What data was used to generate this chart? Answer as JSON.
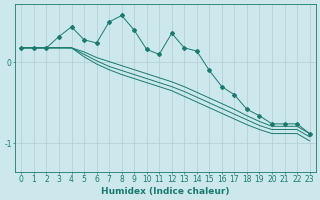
{
  "xlabel": "Humidex (Indice chaleur)",
  "bg_color": "#cce8ec",
  "grid_color": "#b0ced4",
  "line_color": "#1a7a6e",
  "x": [
    0,
    1,
    2,
    3,
    4,
    5,
    6,
    7,
    8,
    9,
    10,
    11,
    12,
    13,
    14,
    15,
    16,
    17,
    18,
    19,
    20,
    21,
    22,
    23
  ],
  "line1": [
    0.18,
    0.18,
    0.18,
    0.32,
    0.44,
    0.28,
    0.24,
    0.5,
    0.58,
    0.4,
    0.16,
    0.1,
    0.36,
    0.18,
    0.14,
    -0.1,
    -0.3,
    -0.4,
    -0.58,
    -0.66,
    -0.76,
    -0.76,
    -0.76,
    -0.88
  ],
  "line2": [
    0.18,
    0.18,
    0.18,
    0.18,
    0.18,
    0.13,
    0.06,
    0.01,
    -0.04,
    -0.09,
    -0.14,
    -0.19,
    -0.24,
    -0.3,
    -0.37,
    -0.44,
    -0.51,
    -0.58,
    -0.66,
    -0.73,
    -0.79,
    -0.79,
    -0.79,
    -0.88
  ],
  "line3": [
    0.18,
    0.18,
    0.18,
    0.18,
    0.18,
    0.1,
    0.02,
    -0.05,
    -0.1,
    -0.15,
    -0.2,
    -0.25,
    -0.3,
    -0.36,
    -0.43,
    -0.5,
    -0.57,
    -0.64,
    -0.71,
    -0.78,
    -0.83,
    -0.83,
    -0.83,
    -0.92
  ],
  "line4": [
    0.18,
    0.18,
    0.18,
    0.18,
    0.18,
    0.07,
    -0.02,
    -0.09,
    -0.15,
    -0.2,
    -0.25,
    -0.3,
    -0.35,
    -0.42,
    -0.49,
    -0.56,
    -0.63,
    -0.7,
    -0.77,
    -0.83,
    -0.88,
    -0.88,
    -0.88,
    -0.97
  ],
  "ylim": [
    -1.35,
    0.72
  ],
  "yticks": [
    0.0,
    -1.0
  ],
  "ytick_labels": [
    "0",
    "-1"
  ],
  "title_fontsize": 6.5,
  "label_fontsize": 6.5,
  "tick_fontsize": 5.5,
  "marker_size": 2.0,
  "lw": 0.7
}
